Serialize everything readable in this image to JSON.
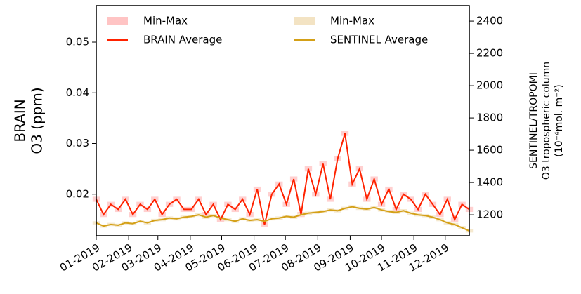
{
  "chart_data": {
    "type": "line",
    "ylabel": [
      "BRAIN",
      "O3 (ppm)"
    ],
    "y2label": [
      "SENTINEL/TROPOMI",
      "O3 tropospheric column",
      "(10⁻⁴mol. m⁻²)"
    ],
    "x": [
      1,
      8,
      15,
      22,
      29,
      36,
      43,
      50,
      57,
      64,
      71,
      78,
      85,
      92,
      99,
      106,
      113,
      120,
      127,
      134,
      141,
      148,
      155,
      162,
      169,
      176,
      183,
      190,
      197,
      204,
      211,
      218,
      225,
      232,
      239,
      246,
      253,
      260,
      267,
      274,
      281,
      288,
      295,
      302,
      309,
      316,
      323,
      330,
      337,
      344,
      351,
      358
    ],
    "xlim": [
      1,
      358
    ],
    "xticks": [
      {
        "value": 1,
        "label": "01-2019"
      },
      {
        "value": 32,
        "label": "02-2019"
      },
      {
        "value": 60,
        "label": "03-2019"
      },
      {
        "value": 91,
        "label": "04-2019"
      },
      {
        "value": 121,
        "label": "05-2019"
      },
      {
        "value": 152,
        "label": "06-2019"
      },
      {
        "value": 182,
        "label": "07-2019"
      },
      {
        "value": 213,
        "label": "08-2019"
      },
      {
        "value": 244,
        "label": "09-2019"
      },
      {
        "value": 274,
        "label": "10-2019"
      },
      {
        "value": 305,
        "label": "11-2019"
      },
      {
        "value": 335,
        "label": "12-2019"
      }
    ],
    "ylim": [
      0.0118,
      0.0572
    ],
    "yticks": [
      0.02,
      0.03,
      0.04,
      0.05
    ],
    "y2lim": [
      1070,
      2496
    ],
    "y2ticks": [
      1200,
      1400,
      1600,
      1800,
      2000,
      2200,
      2400
    ],
    "series": [
      {
        "name": "BRAIN Average",
        "color": "#ff2200",
        "values": [
          0.019,
          0.016,
          0.018,
          0.017,
          0.019,
          0.016,
          0.018,
          0.017,
          0.019,
          0.016,
          0.018,
          0.019,
          0.017,
          0.017,
          0.019,
          0.016,
          0.018,
          0.015,
          0.018,
          0.017,
          0.019,
          0.016,
          0.021,
          0.014,
          0.02,
          0.022,
          0.018,
          0.023,
          0.016,
          0.025,
          0.02,
          0.026,
          0.019,
          0.027,
          0.032,
          0.022,
          0.025,
          0.019,
          0.023,
          0.018,
          0.021,
          0.017,
          0.02,
          0.019,
          0.017,
          0.02,
          0.018,
          0.016,
          0.019,
          0.015,
          0.018,
          0.017
        ],
        "band": {
          "name": "Min-Max",
          "color": "#ffc4c4",
          "low": [
            0.0185,
            0.0155,
            0.0175,
            0.0165,
            0.0185,
            0.0155,
            0.0175,
            0.0165,
            0.0185,
            0.0155,
            0.0175,
            0.0185,
            0.0165,
            0.0165,
            0.0185,
            0.0155,
            0.0175,
            0.0145,
            0.0175,
            0.0165,
            0.0185,
            0.0155,
            0.0205,
            0.0135,
            0.0195,
            0.0215,
            0.0175,
            0.0225,
            0.0155,
            0.0245,
            0.0195,
            0.0255,
            0.0185,
            0.0265,
            0.0315,
            0.0215,
            0.0245,
            0.0185,
            0.0225,
            0.0175,
            0.0205,
            0.0165,
            0.0195,
            0.0185,
            0.0165,
            0.0195,
            0.0175,
            0.0155,
            0.0185,
            0.0145,
            0.0175,
            0.0165
          ],
          "high": [
            0.0195,
            0.0165,
            0.0185,
            0.0175,
            0.0195,
            0.0165,
            0.0185,
            0.0175,
            0.0195,
            0.0165,
            0.0185,
            0.0195,
            0.0175,
            0.0175,
            0.0195,
            0.0165,
            0.0185,
            0.0155,
            0.0185,
            0.0175,
            0.0195,
            0.0165,
            0.0215,
            0.0145,
            0.0205,
            0.0225,
            0.0185,
            0.0235,
            0.0165,
            0.0255,
            0.0205,
            0.0265,
            0.0195,
            0.0275,
            0.0325,
            0.0225,
            0.0255,
            0.0195,
            0.0235,
            0.0185,
            0.0215,
            0.0175,
            0.0205,
            0.0195,
            0.0175,
            0.0205,
            0.0185,
            0.0165,
            0.0195,
            0.0155,
            0.0185,
            0.0175
          ]
        }
      },
      {
        "name": "SENTINEL Average",
        "color": "#d4a017",
        "axis": "y2",
        "values": [
          1150,
          1130,
          1140,
          1135,
          1150,
          1145,
          1160,
          1150,
          1165,
          1170,
          1180,
          1175,
          1185,
          1190,
          1200,
          1185,
          1195,
          1180,
          1170,
          1160,
          1175,
          1165,
          1170,
          1160,
          1175,
          1180,
          1190,
          1185,
          1200,
          1210,
          1215,
          1220,
          1230,
          1225,
          1240,
          1250,
          1240,
          1235,
          1245,
          1230,
          1220,
          1215,
          1225,
          1210,
          1200,
          1195,
          1185,
          1170,
          1150,
          1140,
          1120,
          1100
        ],
        "band": {
          "name": "Min-Max",
          "color": "#f3e3c3",
          "low": [
            1140,
            1120,
            1130,
            1125,
            1140,
            1135,
            1150,
            1140,
            1155,
            1160,
            1170,
            1165,
            1175,
            1180,
            1190,
            1175,
            1185,
            1170,
            1160,
            1150,
            1165,
            1155,
            1160,
            1150,
            1165,
            1170,
            1180,
            1175,
            1190,
            1200,
            1205,
            1210,
            1220,
            1215,
            1230,
            1240,
            1230,
            1225,
            1235,
            1220,
            1210,
            1205,
            1215,
            1200,
            1190,
            1185,
            1175,
            1160,
            1140,
            1130,
            1110,
            1090
          ],
          "high": [
            1160,
            1140,
            1150,
            1145,
            1160,
            1155,
            1170,
            1160,
            1175,
            1180,
            1190,
            1185,
            1195,
            1200,
            1210,
            1195,
            1205,
            1190,
            1180,
            1170,
            1185,
            1175,
            1180,
            1170,
            1185,
            1190,
            1200,
            1195,
            1210,
            1220,
            1225,
            1230,
            1240,
            1235,
            1250,
            1260,
            1250,
            1245,
            1255,
            1240,
            1230,
            1225,
            1235,
            1220,
            1210,
            1205,
            1195,
            1180,
            1160,
            1150,
            1130,
            1110
          ]
        }
      }
    ]
  }
}
